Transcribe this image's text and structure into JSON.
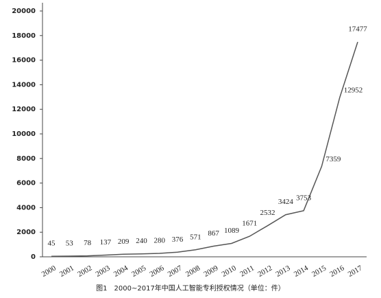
{
  "chart_data": {
    "type": "line",
    "caption": "图1　2000~2017年中国人工智能专利授权情况（单位：件）",
    "categories": [
      "2000",
      "2001",
      "2002",
      "2003",
      "2004",
      "2005",
      "2006",
      "2007",
      "2008",
      "2009",
      "2010",
      "2011",
      "2012",
      "2013",
      "2014",
      "2015",
      "2016",
      "2017"
    ],
    "values": [
      45,
      53,
      78,
      137,
      209,
      240,
      280,
      376,
      571,
      867,
      1089,
      1671,
      2532,
      3424,
      3753,
      7359,
      12952,
      17477
    ],
    "color": "#555555",
    "ylim": [
      0,
      20000
    ],
    "yticks": [
      0,
      2000,
      4000,
      6000,
      8000,
      10000,
      12000,
      14000,
      16000,
      18000,
      20000
    ]
  }
}
